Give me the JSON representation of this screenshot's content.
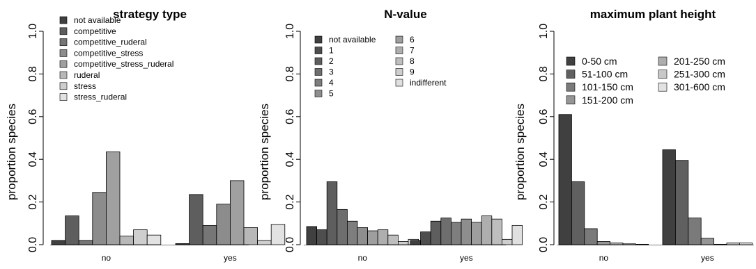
{
  "chart_data": [
    {
      "type": "bar",
      "title": "strategy type",
      "ylabel": "proportion species",
      "xlabel": "",
      "ylim": [
        0,
        1
      ],
      "yticks": [
        "0.0",
        "0.2",
        "0.4",
        "0.6",
        "0.8",
        "1.0"
      ],
      "groups": [
        "no",
        "yes"
      ],
      "legend_position": "top-left",
      "series": [
        {
          "name": "not available",
          "color": "#404040",
          "values": [
            0.02,
            0.005
          ]
        },
        {
          "name": "competitive",
          "color": "#5e5e5e",
          "values": [
            0.135,
            0.235
          ]
        },
        {
          "name": "competitive_ruderal",
          "color": "#767676",
          "values": [
            0.02,
            0.09
          ]
        },
        {
          "name": "competitive_stress",
          "color": "#8c8c8c",
          "values": [
            0.245,
            0.19
          ]
        },
        {
          "name": "competitive_stress_ruderal",
          "color": "#a0a0a0",
          "values": [
            0.435,
            0.3
          ]
        },
        {
          "name": "ruderal",
          "color": "#b8b8b8",
          "values": [
            0.04,
            0.08
          ]
        },
        {
          "name": "stress",
          "color": "#cecece",
          "values": [
            0.07,
            0.02
          ]
        },
        {
          "name": "stress_ruderal",
          "color": "#e2e2e2",
          "values": [
            0.045,
            0.095
          ]
        }
      ]
    },
    {
      "type": "bar",
      "title": "N-value",
      "ylabel": "proportion species",
      "xlabel": "",
      "ylim": [
        0,
        1
      ],
      "yticks": [
        "0.0",
        "0.2",
        "0.4",
        "0.6",
        "0.8",
        "1.0"
      ],
      "groups": [
        "no",
        "yes"
      ],
      "legend_position": "top-left",
      "series": [
        {
          "name": "not available",
          "color": "#404040",
          "values": [
            0.085,
            0.02
          ]
        },
        {
          "name": "1",
          "color": "#4e4e4e",
          "values": [
            0.07,
            0.06
          ]
        },
        {
          "name": "2",
          "color": "#5e5e5e",
          "values": [
            0.295,
            0.11
          ]
        },
        {
          "name": "3",
          "color": "#6e6e6e",
          "values": [
            0.165,
            0.125
          ]
        },
        {
          "name": "4",
          "color": "#7e7e7e",
          "values": [
            0.11,
            0.105
          ]
        },
        {
          "name": "5",
          "color": "#8e8e8e",
          "values": [
            0.08,
            0.12
          ]
        },
        {
          "name": "6",
          "color": "#9e9e9e",
          "values": [
            0.065,
            0.105
          ]
        },
        {
          "name": "7",
          "color": "#aeaeae",
          "values": [
            0.07,
            0.135
          ]
        },
        {
          "name": "8",
          "color": "#bebebe",
          "values": [
            0.045,
            0.12
          ]
        },
        {
          "name": "9",
          "color": "#cecece",
          "values": [
            0.015,
            0.025
          ]
        },
        {
          "name": "indifferent",
          "color": "#e0e0e0",
          "values": [
            0.025,
            0.09
          ]
        }
      ]
    },
    {
      "type": "bar",
      "title": "maximum plant height",
      "ylabel": "proportion species",
      "xlabel": "",
      "ylim": [
        0,
        1
      ],
      "yticks": [
        "0.0",
        "0.2",
        "0.4",
        "0.6",
        "0.8",
        "1.0"
      ],
      "groups": [
        "no",
        "yes"
      ],
      "legend_position": "top-left",
      "series": [
        {
          "name": "0-50 cm",
          "color": "#404040",
          "values": [
            0.61,
            0.445
          ]
        },
        {
          "name": "51-100 cm",
          "color": "#606060",
          "values": [
            0.295,
            0.395
          ]
        },
        {
          "name": "101-150 cm",
          "color": "#7a7a7a",
          "values": [
            0.075,
            0.125
          ]
        },
        {
          "name": "151-200 cm",
          "color": "#959595",
          "values": [
            0.015,
            0.03
          ]
        },
        {
          "name": "201-250 cm",
          "color": "#adadad",
          "values": [
            0.008,
            0.002
          ]
        },
        {
          "name": "251-300 cm",
          "color": "#c8c8c8",
          "values": [
            0.004,
            0.008
          ]
        },
        {
          "name": "301-600 cm",
          "color": "#e2e2e2",
          "values": [
            0.002,
            0.008
          ]
        }
      ]
    }
  ]
}
